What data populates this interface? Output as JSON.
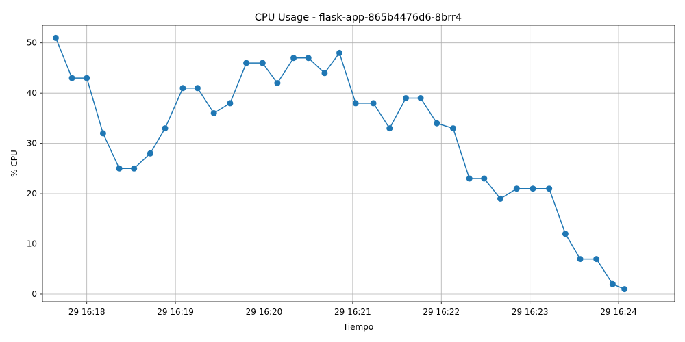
{
  "chart_data": {
    "type": "line",
    "title": "CPU Usage - flask-app-865b4476d6-8brr4",
    "xlabel": "Tiempo",
    "ylabel": "% CPU",
    "grid": true,
    "marker": "circle",
    "color": "#1f77b4",
    "ylim": [
      -1.5,
      53.5
    ],
    "xlim": [
      "16:17:30",
      "16:24:38"
    ],
    "xticks": [
      {
        "t": "16:18:00",
        "label": "29 16:18"
      },
      {
        "t": "16:19:00",
        "label": "29 16:19"
      },
      {
        "t": "16:20:00",
        "label": "29 16:20"
      },
      {
        "t": "16:21:00",
        "label": "29 16:21"
      },
      {
        "t": "16:22:00",
        "label": "29 16:22"
      },
      {
        "t": "16:23:00",
        "label": "29 16:23"
      },
      {
        "t": "16:24:00",
        "label": "29 16:24"
      }
    ],
    "yticks": [
      0,
      10,
      20,
      30,
      40,
      50
    ],
    "series": [
      {
        "points": [
          {
            "t": "16:17:39",
            "v": 51
          },
          {
            "t": "16:17:50",
            "v": 43
          },
          {
            "t": "16:18:00",
            "v": 43
          },
          {
            "t": "16:18:11",
            "v": 32
          },
          {
            "t": "16:18:22",
            "v": 25
          },
          {
            "t": "16:18:32",
            "v": 25
          },
          {
            "t": "16:18:43",
            "v": 28
          },
          {
            "t": "16:18:53",
            "v": 33
          },
          {
            "t": "16:19:05",
            "v": 41
          },
          {
            "t": "16:19:15",
            "v": 41
          },
          {
            "t": "16:19:26",
            "v": 36
          },
          {
            "t": "16:19:37",
            "v": 38
          },
          {
            "t": "16:19:48",
            "v": 46
          },
          {
            "t": "16:19:59",
            "v": 46
          },
          {
            "t": "16:20:09",
            "v": 42
          },
          {
            "t": "16:20:20",
            "v": 47
          },
          {
            "t": "16:20:30",
            "v": 47
          },
          {
            "t": "16:20:41",
            "v": 44
          },
          {
            "t": "16:20:51",
            "v": 48
          },
          {
            "t": "16:21:02",
            "v": 38
          },
          {
            "t": "16:21:14",
            "v": 38
          },
          {
            "t": "16:21:25",
            "v": 33
          },
          {
            "t": "16:21:36",
            "v": 39
          },
          {
            "t": "16:21:46",
            "v": 39
          },
          {
            "t": "16:21:57",
            "v": 34
          },
          {
            "t": "16:22:08",
            "v": 33
          },
          {
            "t": "16:22:19",
            "v": 23
          },
          {
            "t": "16:22:29",
            "v": 23
          },
          {
            "t": "16:22:40",
            "v": 19
          },
          {
            "t": "16:22:51",
            "v": 21
          },
          {
            "t": "16:23:02",
            "v": 21
          },
          {
            "t": "16:23:13",
            "v": 21
          },
          {
            "t": "16:23:24",
            "v": 12
          },
          {
            "t": "16:23:34",
            "v": 7
          },
          {
            "t": "16:23:45",
            "v": 7
          },
          {
            "t": "16:23:56",
            "v": 2
          },
          {
            "t": "16:24:04",
            "v": 1
          }
        ]
      }
    ]
  }
}
